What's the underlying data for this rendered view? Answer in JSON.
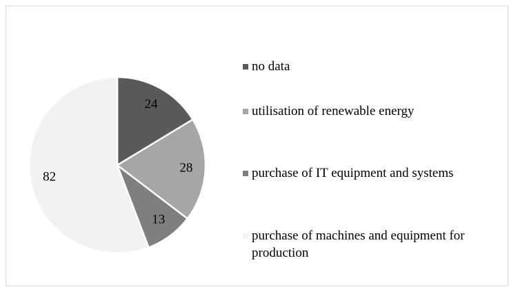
{
  "chart_data": {
    "type": "pie",
    "categories": [
      "no data",
      "utilisation of renewable energy",
      "purchase of IT equipment and systems",
      "purchase of machines and equipment for production"
    ],
    "values": [
      24,
      28,
      13,
      82
    ],
    "colors": [
      "#595959",
      "#a6a6a6",
      "#7f7f7f",
      "#f2f2f2"
    ],
    "legend": "right"
  }
}
